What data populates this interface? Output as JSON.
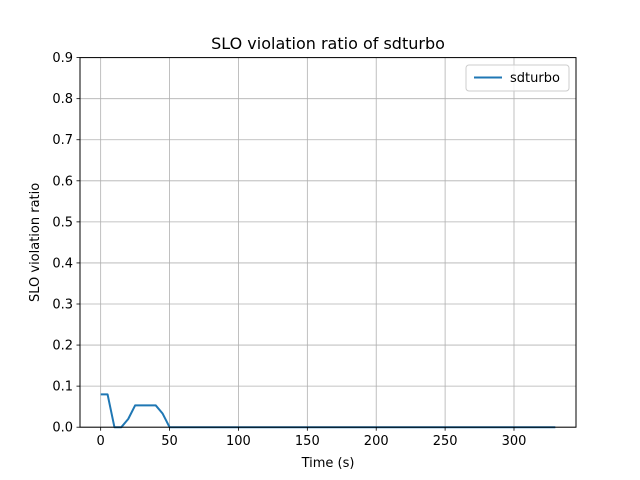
{
  "chart_data": {
    "type": "line",
    "title": "SLO violation ratio of sdturbo",
    "xlabel": "Time (s)",
    "ylabel": "SLO violation ratio",
    "xlim": [
      -15,
      345
    ],
    "ylim": [
      0,
      0.9
    ],
    "xticks": [
      0,
      50,
      100,
      150,
      200,
      250,
      300
    ],
    "yticks": [
      0.0,
      0.1,
      0.2,
      0.3,
      0.4,
      0.5,
      0.6,
      0.7,
      0.8,
      0.9
    ],
    "grid": true,
    "legend_position": "top-right",
    "color": "#1f77b4",
    "series": [
      {
        "name": "sdturbo",
        "x": [
          0,
          5,
          10,
          15,
          20,
          25,
          30,
          35,
          40,
          45,
          50,
          55,
          60,
          100,
          150,
          200,
          250,
          300,
          330
        ],
        "y": [
          0.08,
          0.08,
          0.0,
          0.0,
          0.02,
          0.053,
          0.053,
          0.053,
          0.053,
          0.033,
          0.0,
          0.0,
          0.0,
          0.0,
          0.0,
          0.0,
          0.0,
          0.0,
          0.0
        ]
      }
    ]
  }
}
